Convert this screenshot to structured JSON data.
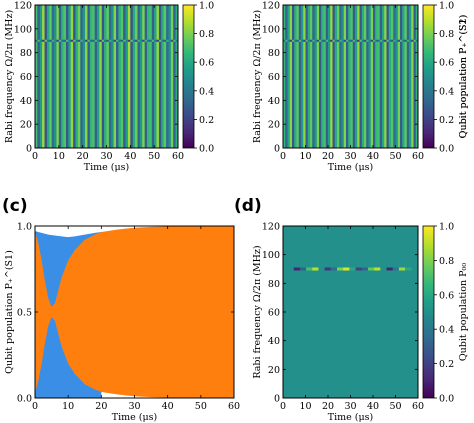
{
  "panel_labels": [
    "(c)",
    "(d)"
  ],
  "colormap": [
    "#440154",
    "#482878",
    "#3e4989",
    "#31688e",
    "#26828e",
    "#1f9e89",
    "#35b779",
    "#6ece58",
    "#b5de2b",
    "#fde725"
  ],
  "colors": {
    "blue_fill": "#3a8ee6",
    "orange_fill": "#ff7f0e",
    "axis": "#000000"
  },
  "chart_data": [
    {
      "id": "a",
      "type": "heatmap",
      "xlabel": "Time (μs)",
      "ylabel": "Rabi frequency Ω/2π (MHz)",
      "colorbar_label": "Qubit population P₊^(S1)",
      "xlim": [
        0,
        60
      ],
      "ylim": [
        0,
        120
      ],
      "x_ticks": [
        0,
        10,
        20,
        30,
        40,
        50,
        60
      ],
      "y_ticks": [
        0,
        20,
        40,
        60,
        80,
        100,
        120
      ],
      "clim": [
        0,
        1
      ],
      "colorbar_ticks": [
        "0.0",
        "0.2",
        "0.4",
        "0.6",
        "0.8",
        "1.0"
      ],
      "column_values": [
        0.7,
        0.3,
        0.55,
        0.85,
        0.25,
        0.6,
        0.75,
        0.35,
        0.5,
        0.8,
        0.3,
        0.65,
        0.72,
        0.28,
        0.58,
        0.84,
        0.26,
        0.62,
        0.78,
        0.33,
        0.52,
        0.82,
        0.29,
        0.66,
        0.71,
        0.31,
        0.57,
        0.83,
        0.27,
        0.63,
        0.76,
        0.34,
        0.51,
        0.81,
        0.3,
        0.64,
        0.73,
        0.29,
        0.56,
        0.86,
        0.25,
        0.61,
        0.77,
        0.32,
        0.53,
        0.8,
        0.31,
        0.66,
        0.7,
        0.3,
        0.59,
        0.84,
        0.27,
        0.62,
        0.74,
        0.35,
        0.5,
        0.79,
        0.3,
        0.62
      ],
      "resonance_line_mhz": 90
    },
    {
      "id": "b",
      "type": "heatmap",
      "xlabel": "Time (μs)",
      "ylabel": "Rabi frequency Ω/2π (MHz)",
      "colorbar_label": "Qubit population P₊^(S2)",
      "xlim": [
        0,
        60
      ],
      "ylim": [
        0,
        120
      ],
      "x_ticks": [
        0,
        10,
        20,
        30,
        40,
        50,
        60
      ],
      "y_ticks": [
        0,
        20,
        40,
        60,
        80,
        100,
        120
      ],
      "clim": [
        0,
        1
      ],
      "colorbar_ticks": [
        "0.0",
        "0.2",
        "0.4",
        "0.6",
        "0.8",
        "1.0"
      ],
      "column_values": [
        0.66,
        0.32,
        0.58,
        0.82,
        0.27,
        0.63,
        0.74,
        0.3,
        0.54,
        0.83,
        0.29,
        0.61,
        0.75,
        0.33,
        0.52,
        0.8,
        0.28,
        0.64,
        0.71,
        0.31,
        0.56,
        0.85,
        0.26,
        0.6,
        0.77,
        0.34,
        0.5,
        0.81,
        0.3,
        0.65,
        0.72,
        0.29,
        0.57,
        0.84,
        0.27,
        0.62,
        0.76,
        0.32,
        0.53,
        0.8,
        0.31,
        0.67,
        0.7,
        0.3,
        0.59,
        0.83,
        0.26,
        0.63,
        0.73,
        0.35,
        0.51,
        0.79,
        0.29,
        0.61,
        0.75,
        0.33,
        0.55,
        0.82,
        0.28,
        0.64
      ],
      "resonance_line_mhz": 90
    },
    {
      "id": "c",
      "type": "area",
      "xlabel": "Time (μs)",
      "ylabel": "Qubit population P₊^(S1)",
      "xlim": [
        0,
        60
      ],
      "ylim": [
        0,
        1
      ],
      "x_ticks": [
        0,
        10,
        20,
        30,
        40,
        50,
        60
      ],
      "y_ticks": [
        0,
        0.5,
        1.0
      ],
      "y_tick_labels": [
        "0.0",
        "0.5",
        "1.0"
      ],
      "envelope_x": [
        0,
        1,
        2,
        3,
        4,
        5,
        6,
        8,
        10,
        12,
        15,
        18,
        20,
        25,
        30,
        35,
        40,
        45,
        50,
        55,
        60
      ],
      "envelope_upper": [
        0.97,
        0.9,
        0.8,
        0.68,
        0.58,
        0.53,
        0.55,
        0.7,
        0.8,
        0.86,
        0.92,
        0.95,
        0.965,
        0.98,
        0.99,
        0.995,
        0.997,
        0.998,
        0.998,
        0.998,
        0.998
      ],
      "envelope_lower": [
        0.03,
        0.1,
        0.2,
        0.32,
        0.42,
        0.47,
        0.45,
        0.3,
        0.2,
        0.14,
        0.08,
        0.05,
        0.035,
        0.02,
        0.01,
        0.005,
        0.003,
        0.002,
        0.002,
        0.002,
        0.002
      ],
      "blue_region_x": [
        0,
        1,
        2,
        3,
        4,
        6,
        8,
        10,
        12,
        15,
        18,
        20
      ],
      "blue_region_top": [
        0.97,
        0.965,
        0.96,
        0.955,
        0.95,
        0.945,
        0.94,
        0.935,
        0.94,
        0.95,
        0.96,
        0.965
      ]
    },
    {
      "id": "d",
      "type": "heatmap",
      "xlabel": "Time (μs)",
      "ylabel": "Rabi frequency Ω/2π (MHz)",
      "colorbar_label": "Qubit population P₀₀",
      "xlim": [
        0,
        60
      ],
      "ylim": [
        0,
        120
      ],
      "x_ticks": [
        0,
        10,
        20,
        30,
        40,
        50,
        60
      ],
      "y_ticks": [
        0,
        20,
        40,
        60,
        80,
        100,
        120
      ],
      "clim": [
        0,
        1
      ],
      "colorbar_ticks": [
        "0.0",
        "0.2",
        "0.4",
        "0.6",
        "0.8",
        "1.0"
      ],
      "background_value": 0.5,
      "resonance_line_mhz": 90,
      "resonance_line_values": [
        0.5,
        0.1,
        0.3,
        0.7,
        0.9,
        0.5,
        0.15,
        0.35,
        0.8,
        0.95,
        0.6,
        0.2,
        0.3,
        0.75,
        0.9,
        0.5,
        0.1,
        0.4,
        0.85,
        0.6
      ]
    }
  ]
}
